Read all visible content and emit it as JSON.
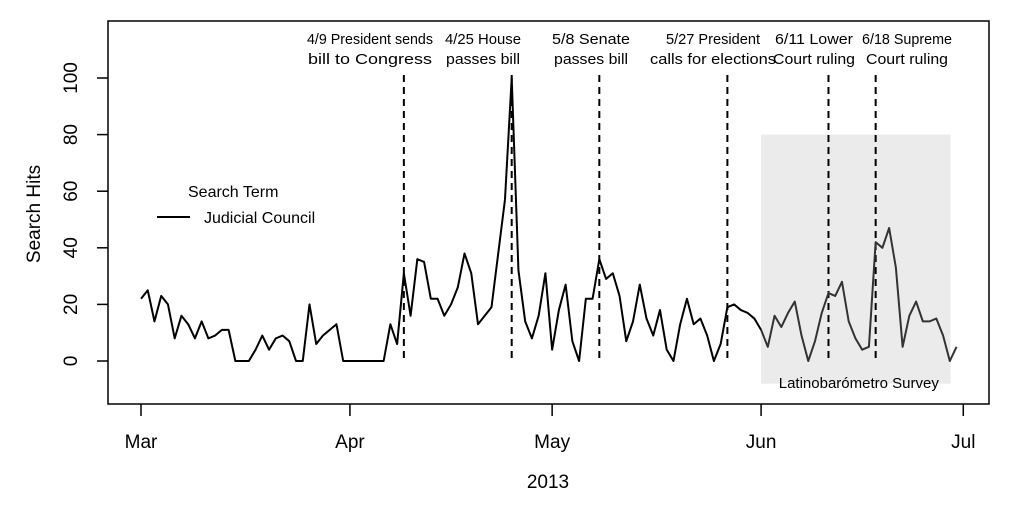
{
  "chart_data": {
    "type": "line",
    "title": "",
    "xlabel": "2013",
    "ylabel": "Search Hits",
    "ylim": [
      -15,
      118
    ],
    "yticks": [
      0,
      20,
      40,
      60,
      80,
      100
    ],
    "xticks": [
      {
        "date": "2013-03-01",
        "label": "Mar"
      },
      {
        "date": "2013-04-01",
        "label": "Apr"
      },
      {
        "date": "2013-05-01",
        "label": "May"
      },
      {
        "date": "2013-06-01",
        "label": "Jun"
      },
      {
        "date": "2013-07-01",
        "label": "Jul"
      }
    ],
    "x_start_date": "2013-03-01",
    "x_range_days": [
      -5,
      126
    ],
    "grid": false,
    "legend": {
      "title": "Search Term",
      "placement": "left",
      "entries": [
        "Judicial Council"
      ]
    },
    "series": [
      {
        "name": "Judicial Council",
        "color": "#000000",
        "values": [
          22,
          25,
          14,
          23,
          20,
          8,
          16,
          13,
          8,
          14,
          8,
          9,
          11,
          11,
          0,
          0,
          0,
          4,
          9,
          4,
          8,
          9,
          7,
          0,
          0,
          20,
          6,
          9,
          11,
          13,
          0,
          0,
          0,
          0,
          0,
          0,
          0,
          13,
          6,
          31,
          16,
          36,
          35,
          22,
          22,
          16,
          20,
          26,
          38,
          31,
          13,
          16,
          19,
          38,
          57,
          100,
          32,
          14,
          8,
          16,
          31,
          4,
          18,
          27,
          7,
          0,
          22,
          22,
          36,
          29,
          31,
          23,
          7,
          14,
          27,
          15,
          9,
          18,
          4,
          0,
          13,
          22,
          13,
          15,
          9,
          0,
          6,
          19,
          20,
          18,
          17,
          15,
          11,
          5,
          16,
          12,
          17,
          21,
          9,
          0,
          7,
          17,
          24,
          23,
          28,
          14,
          8,
          4,
          5,
          42,
          40,
          47,
          33,
          5,
          16,
          21,
          14,
          14,
          15,
          9,
          0,
          5
        ]
      }
    ],
    "events": [
      {
        "date": "2013-04-09",
        "line1": "4/9 President sends",
        "line2": "bill to Congress"
      },
      {
        "date": "2013-04-25",
        "line1": "4/25 House",
        "line2": "passes bill"
      },
      {
        "date": "2013-05-08",
        "line1": "5/8 Senate",
        "line2": "passes bill"
      },
      {
        "date": "2013-05-27",
        "line1": "5/27 President",
        "line2": "calls for elections"
      },
      {
        "date": "2013-06-11",
        "line1": "6/11 Lower",
        "line2": "Court ruling"
      },
      {
        "date": "2013-06-18",
        "line1": "6/18 Supreme",
        "line2": "Court ruling"
      }
    ],
    "shaded_region": {
      "label": "Latinobarómetro Survey",
      "start_date": "2013-06-01",
      "end_date": "2013-06-30",
      "y_range": [
        -8,
        80
      ],
      "color": "#ebebeb"
    }
  }
}
